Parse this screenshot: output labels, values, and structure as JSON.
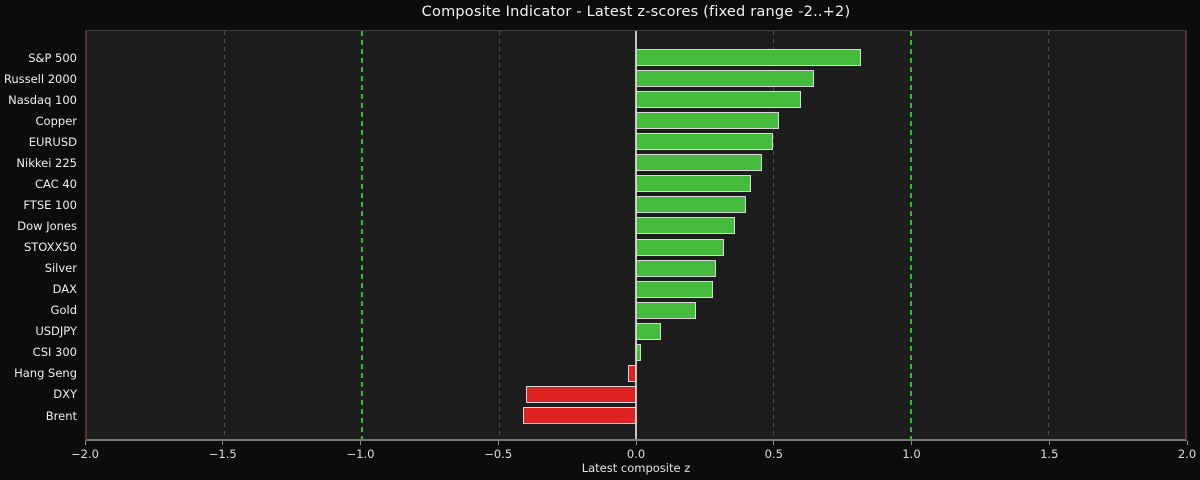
{
  "chart_data": {
    "type": "bar",
    "orientation": "horizontal",
    "title": "Composite Indicator - Latest z-scores (fixed range -2..+2)",
    "xlabel": "Latest composite z",
    "xlim": [
      -2,
      2
    ],
    "xtick_values": [
      -2,
      -1.5,
      -1,
      -0.5,
      0,
      0.5,
      1,
      1.5,
      2
    ],
    "xtick_labels": [
      "−2.0",
      "−1.5",
      "−1.0",
      "−0.5",
      "0.0",
      "0.5",
      "1.0",
      "1.5",
      "2.0"
    ],
    "categories": [
      "S&P 500",
      "Russell 2000",
      "Nasdaq 100",
      "Copper",
      "EURUSD",
      "Nikkei 225",
      "CAC 40",
      "FTSE 100",
      "Dow Jones",
      "STOXX50",
      "Silver",
      "DAX",
      "Gold",
      "USDJPY",
      "CSI 300",
      "Hang Seng",
      "DXY",
      "Brent"
    ],
    "values": [
      0.82,
      0.65,
      0.6,
      0.52,
      0.5,
      0.46,
      0.42,
      0.4,
      0.36,
      0.32,
      0.29,
      0.28,
      0.22,
      0.09,
      0.02,
      -0.03,
      -0.4,
      -0.41
    ],
    "grid_lines": [
      -1.5,
      -0.5,
      0.5,
      1.5
    ],
    "reference_lines": [
      -1,
      1
    ],
    "zero_line": 0,
    "legend": "none",
    "colors": {
      "positive_bar": "#45bb3d",
      "negative_bar": "#e02222",
      "bar_edge": "#d8d8d8",
      "zero_line": "#c6c6c6",
      "reference_line": "#23c423",
      "grid_line": "#505050",
      "figure_bg": "#0c0c0c",
      "axes_bg": "#1d1d1d"
    }
  }
}
